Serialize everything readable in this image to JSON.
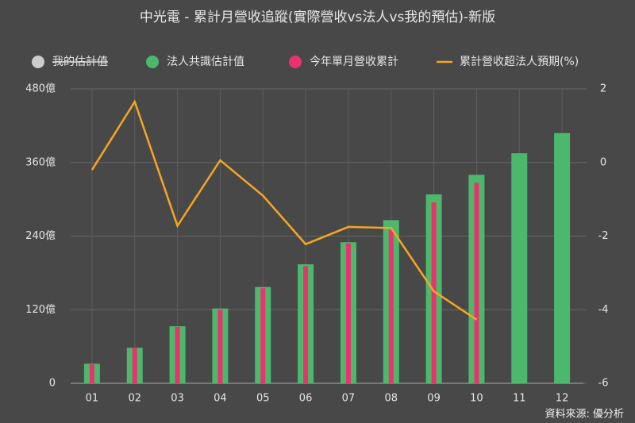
{
  "chart_data": {
    "type": "bar-line",
    "title": "中光電 - 累計月營收追蹤(實際營收vs法人vs我的預估)-新版",
    "source": "資料來源: 優分析",
    "categories": [
      "01",
      "02",
      "03",
      "04",
      "05",
      "06",
      "07",
      "08",
      "09",
      "10",
      "11",
      "12"
    ],
    "series": [
      {
        "name": "我的估計值",
        "color": "#cccccc",
        "hidden": true,
        "values": [
          null,
          null,
          null,
          null,
          null,
          null,
          null,
          null,
          null,
          null,
          null,
          null
        ]
      },
      {
        "name": "法人共識估計值",
        "color": "#4cb86b",
        "values": [
          32,
          58,
          93,
          122,
          157,
          194,
          230,
          266,
          308,
          340,
          375,
          408
        ]
      },
      {
        "name": "今年單月營收累計",
        "color": "#e8336e",
        "values": [
          31,
          58,
          92,
          120,
          155,
          191,
          228,
          250,
          295,
          327,
          null,
          null
        ]
      },
      {
        "name": "累計營收超法人預期(%)",
        "color": "#f5a623",
        "axis": "y2",
        "values": [
          -0.2,
          1.65,
          -1.72,
          0.06,
          -0.9,
          -2.22,
          -1.75,
          -1.78,
          -3.5,
          -4.27,
          null,
          null
        ]
      }
    ],
    "ylim": [
      0,
      480
    ],
    "yticks": [
      0,
      {
        "value": 120,
        "label": "120億"
      },
      {
        "value": 240,
        "label": "240億"
      },
      {
        "value": 360,
        "label": "360億"
      },
      {
        "value": 480,
        "label": "480億"
      }
    ],
    "y2lim": [
      -6,
      2
    ],
    "y2ticks": [
      -6,
      -4,
      -2,
      0,
      2
    ],
    "grid": true
  }
}
